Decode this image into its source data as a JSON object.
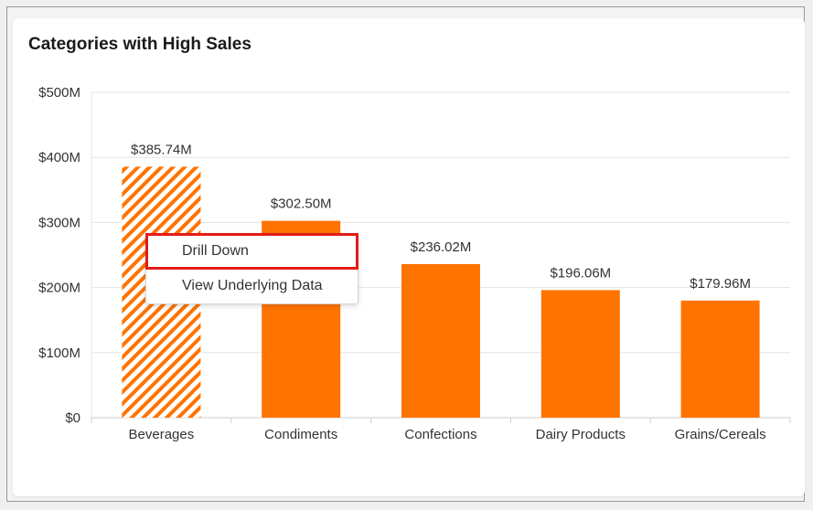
{
  "chart_data": {
    "type": "bar",
    "title": "Categories with High Sales",
    "categories": [
      "Beverages",
      "Condiments",
      "Confections",
      "Dairy Products",
      "Grains/Cereals"
    ],
    "values": [
      385.74,
      302.5,
      236.02,
      196.06,
      179.96
    ],
    "value_labels": [
      "$385.74M",
      "$302.50M",
      "$236.02M",
      "$196.06M",
      "$179.96M"
    ],
    "y_ticks": [
      0,
      100,
      200,
      300,
      400,
      500
    ],
    "y_tick_labels": [
      "$0",
      "$100M",
      "$200M",
      "$300M",
      "$400M",
      "$500M"
    ],
    "ylim": [
      0,
      500
    ],
    "xlabel": "",
    "ylabel": "",
    "grid": true,
    "bar_color": "#ff7300",
    "selected_category": "Beverages"
  },
  "context_menu": {
    "items": [
      {
        "label": "Drill Down",
        "highlighted": true
      },
      {
        "label": "View Underlying Data",
        "highlighted": false
      }
    ],
    "highlight_color": "#e41b17"
  }
}
